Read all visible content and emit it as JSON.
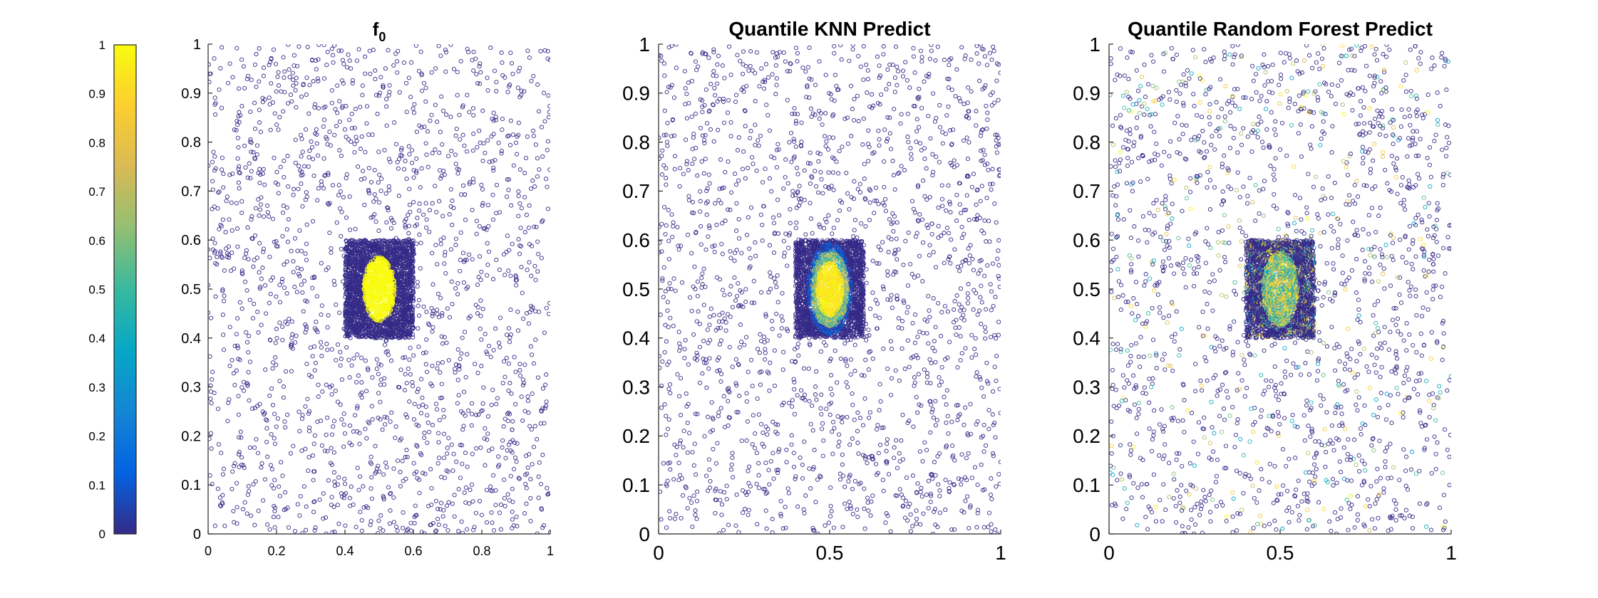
{
  "chart_data": [
    {
      "type": "scatter",
      "title": "f",
      "title_subscript": "0",
      "xlim": [
        0,
        1
      ],
      "ylim": [
        0,
        1
      ],
      "xticks": [
        "0",
        "0.2",
        "0.4",
        "0.6",
        "0.8",
        "1"
      ],
      "yticks": [
        "0",
        "0.1",
        "0.2",
        "0.3",
        "0.4",
        "0.5",
        "0.6",
        "0.7",
        "0.8",
        "0.9",
        "1"
      ],
      "uniform_points": 1800,
      "dense_region": {
        "x": [
          0.4,
          0.6
        ],
        "y": [
          0.4,
          0.6
        ],
        "points": 2600
      },
      "high_region": {
        "center": [
          0.5,
          0.5
        ],
        "radius_x": 0.045,
        "radius_y": 0.065,
        "value": 1
      },
      "background_value": 0,
      "marker": "open-circle"
    },
    {
      "type": "scatter",
      "title": "Quantile KNN Predict",
      "xlim": [
        0,
        1
      ],
      "ylim": [
        0,
        1
      ],
      "xticks": [
        "0",
        "0.5",
        "1"
      ],
      "yticks": [
        "0",
        "0.1",
        "0.2",
        "0.3",
        "0.4",
        "0.5",
        "0.6",
        "0.7",
        "0.8",
        "0.9",
        "1"
      ],
      "uniform_points": 1800,
      "dense_region": {
        "x": [
          0.4,
          0.6
        ],
        "y": [
          0.4,
          0.6
        ],
        "points": 2600
      },
      "high_region": {
        "center": [
          0.5,
          0.5
        ],
        "radius_x": 0.045,
        "radius_y": 0.065,
        "value": 0.85
      },
      "background_value": 0,
      "marker": "open-circle"
    },
    {
      "type": "scatter",
      "title": "Quantile Random Forest Predict",
      "xlim": [
        0,
        1
      ],
      "ylim": [
        0,
        1
      ],
      "xticks": [
        "0",
        "0.5",
        "1"
      ],
      "yticks": [
        "0",
        "0.1",
        "0.2",
        "0.3",
        "0.4",
        "0.5",
        "0.6",
        "0.7",
        "0.8",
        "0.9",
        "1"
      ],
      "uniform_points": 1800,
      "dense_region": {
        "x": [
          0.4,
          0.6
        ],
        "y": [
          0.4,
          0.6
        ],
        "points": 2600
      },
      "high_region": {
        "center": [
          0.5,
          0.5
        ],
        "radius_x": 0.05,
        "radius_y": 0.075,
        "value": 0.7
      },
      "background_value": 0,
      "noise_fraction": 0.18,
      "marker": "open-circle"
    }
  ],
  "colorbar": {
    "colormap": "parula",
    "min": 0,
    "max": 1,
    "ticks": [
      "0",
      "0.1",
      "0.2",
      "0.3",
      "0.4",
      "0.5",
      "0.6",
      "0.7",
      "0.8",
      "0.9",
      "1"
    ],
    "stops": [
      "#352a87",
      "#0363e1",
      "#1485d4",
      "#06a7c6",
      "#38b99e",
      "#92bf73",
      "#d9ba56",
      "#fcce2e",
      "#f9fb0e"
    ]
  }
}
